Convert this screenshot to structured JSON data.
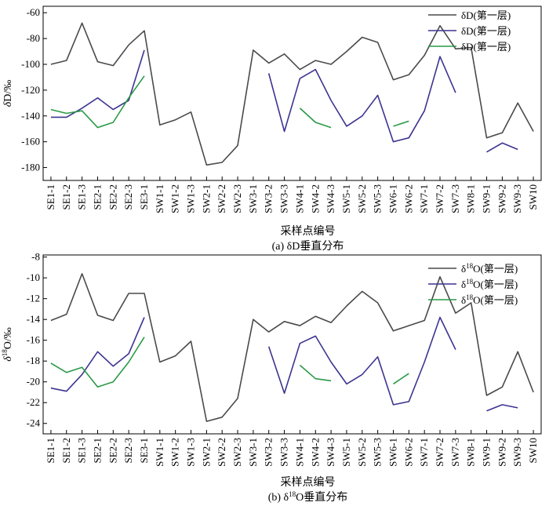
{
  "chart_data": [
    {
      "type": "line",
      "panel": "a",
      "categories": [
        "SE1-1",
        "SE1-2",
        "SE1-3",
        "SE2-1",
        "SE2-2",
        "SE2-3",
        "SE3-1",
        "SW1-1",
        "SW1-2",
        "SW1-3",
        "SW2-1",
        "SW2-2",
        "SW2-3",
        "SW3-1",
        "SW3-2",
        "SW3-3",
        "SW4-1",
        "SW4-2",
        "SW4-3",
        "SW5-1",
        "SW5-2",
        "SW5-3",
        "SW6-1",
        "SW6-2",
        "SW7-1",
        "SW7-2",
        "SW7-3",
        "SW8-1",
        "SW9-1",
        "SW9-2",
        "SW9-3",
        "SW10"
      ],
      "series": [
        {
          "name": "δD(第一层)",
          "color": "#4a4a4a",
          "values": [
            -100,
            -97,
            -68,
            -98,
            -101,
            -85,
            -74,
            -147,
            -143,
            -137,
            -178,
            -176,
            -163,
            -89,
            -99,
            -92,
            -104,
            -97,
            -100,
            -90,
            -79,
            -83,
            -112,
            -108,
            -93,
            -70,
            -88,
            -87,
            -157,
            -153,
            -130,
            -152
          ]
        },
        {
          "name": "δD(第一层)",
          "color": "#3c3491",
          "values": [
            -141,
            -141,
            -134,
            -126,
            -135,
            -128,
            -89,
            null,
            null,
            null,
            null,
            null,
            null,
            null,
            -107,
            -152,
            -111,
            -104,
            -128,
            -148,
            -140,
            -124,
            -160,
            -157,
            -136,
            -94,
            -122,
            null,
            -168,
            -161,
            -166,
            null
          ]
        },
        {
          "name": "δD(第一层)",
          "color": "#2a9a46",
          "values": [
            -135,
            -138,
            -136,
            -149,
            -145,
            -126,
            -109,
            null,
            null,
            null,
            null,
            null,
            null,
            null,
            null,
            null,
            -134,
            -145,
            -149,
            null,
            null,
            null,
            -148,
            -144,
            null,
            null,
            null,
            null,
            null,
            null,
            null,
            null
          ]
        }
      ],
      "y_axis": {
        "label_main": "δD/",
        "label_unit": "‰",
        "min": -190,
        "max": -55,
        "ticks": [
          -60,
          -80,
          -100,
          -120,
          -140,
          -160,
          -180
        ]
      },
      "x_axis": {
        "label": "采样点编号"
      },
      "caption_prefix": "(a) ",
      "caption_main": "δD垂直分布"
    },
    {
      "type": "line",
      "panel": "b",
      "categories": [
        "SE1-1",
        "SE1-2",
        "SE1-3",
        "SE2-1",
        "SE2-2",
        "SE2-3",
        "SE3-1",
        "SW1-1",
        "SW1-2",
        "SW1-3",
        "SW2-1",
        "SW2-2",
        "SW2-3",
        "SW3-1",
        "SW3-2",
        "SW3-3",
        "SW4-1",
        "SW4-2",
        "SW4-3",
        "SW5-1",
        "SW5-2",
        "SW5-3",
        "SW6-1",
        "SW6-2",
        "SW7-1",
        "SW7-2",
        "SW7-3",
        "SW8-1",
        "SW9-1",
        "SW9-2",
        "SW9-3",
        "SW10"
      ],
      "series": [
        {
          "name": "δ18O(第一层)",
          "color": "#4a4a4a",
          "values": [
            -14.1,
            -13.5,
            -9.6,
            -13.6,
            -14.1,
            -11.5,
            -11.5,
            -18.1,
            -17.5,
            -16.1,
            -23.8,
            -23.4,
            -21.6,
            -14.0,
            -15.2,
            -14.2,
            -14.6,
            -13.7,
            -14.3,
            -12.7,
            -11.3,
            -12.4,
            -15.1,
            -14.6,
            -14.1,
            -9.9,
            -13.4,
            -12.4,
            -21.3,
            -20.5,
            -17.1,
            -21.0
          ]
        },
        {
          "name": "δ18O(第一层)",
          "color": "#3c3491",
          "values": [
            -20.6,
            -20.9,
            -19.3,
            -17.1,
            -18.5,
            -17.3,
            -13.8,
            null,
            null,
            null,
            null,
            null,
            null,
            null,
            -16.6,
            -21.1,
            -16.3,
            -15.6,
            -18.1,
            -20.2,
            -19.3,
            -17.6,
            -22.2,
            -21.9,
            -18.1,
            -13.8,
            -16.9,
            null,
            -22.8,
            -22.2,
            -22.5,
            null
          ]
        },
        {
          "name": "δ18O(第一层)",
          "color": "#2a9a46",
          "values": [
            -18.2,
            -19.1,
            -18.6,
            -20.5,
            -20.0,
            -18.1,
            -15.7,
            null,
            null,
            null,
            null,
            null,
            null,
            null,
            null,
            null,
            -18.4,
            -19.7,
            -19.9,
            null,
            null,
            null,
            -20.2,
            -19.2,
            null,
            null,
            null,
            null,
            null,
            null,
            null,
            null
          ]
        }
      ],
      "y_axis": {
        "label_main": "δ18O/",
        "label_unit": "‰",
        "min": -25,
        "max": -7.8,
        "ticks": [
          -8,
          -10,
          -12,
          -14,
          -16,
          -18,
          -20,
          -22,
          -24
        ]
      },
      "x_axis": {
        "label": "采样点编号"
      },
      "caption_prefix": "(b) ",
      "caption_main": "δ18O垂直分布"
    }
  ]
}
